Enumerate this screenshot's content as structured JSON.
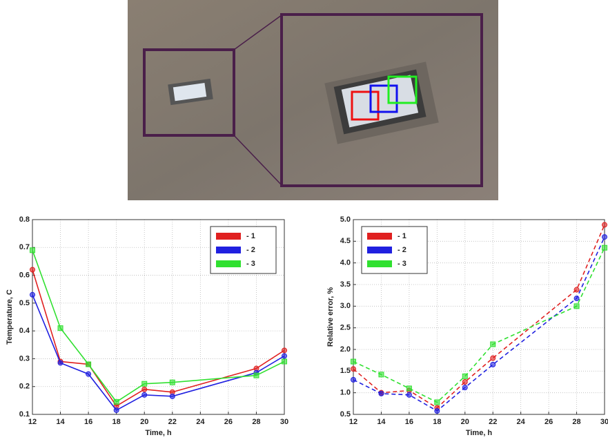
{
  "chart_data": [
    {
      "type": "line",
      "xlabel": "Time, h",
      "ylabel": "Temperature, C",
      "x": [
        12,
        14,
        16,
        18,
        20,
        22,
        28,
        30
      ],
      "xlim": [
        12,
        30
      ],
      "xticks": [
        12,
        14,
        16,
        18,
        20,
        22,
        24,
        26,
        28,
        30
      ],
      "ylim": [
        0.1,
        0.8
      ],
      "yticks": [
        0.1,
        0.2,
        0.3,
        0.4,
        0.5,
        0.6,
        0.7,
        0.8
      ],
      "grid": true,
      "legend": "upper right",
      "linestyle": "solid",
      "series": [
        {
          "name": "- 1",
          "color": "#e02020",
          "marker": "circle",
          "values": [
            0.62,
            0.29,
            0.28,
            0.13,
            0.19,
            0.18,
            0.265,
            0.33
          ]
        },
        {
          "name": "- 2",
          "color": "#2020e0",
          "marker": "circle",
          "values": [
            0.53,
            0.285,
            0.245,
            0.115,
            0.17,
            0.165,
            0.25,
            0.31
          ]
        },
        {
          "name": "- 3",
          "color": "#30e030",
          "marker": "square",
          "values": [
            0.69,
            0.41,
            0.28,
            0.145,
            0.21,
            0.215,
            0.24,
            0.29
          ]
        }
      ]
    },
    {
      "type": "line",
      "xlabel": "Time, h",
      "ylabel": "Relative error, %",
      "x": [
        12,
        14,
        16,
        18,
        20,
        22,
        28,
        30
      ],
      "xlim": [
        12,
        30
      ],
      "xticks": [
        12,
        14,
        16,
        18,
        20,
        22,
        24,
        26,
        28,
        30
      ],
      "ylim": [
        0.5,
        5.0
      ],
      "yticks": [
        0.5,
        {
          "value": 1,
          "label": "1.0"
        },
        1.5,
        {
          "value": 2,
          "label": "2.0"
        },
        2.5,
        {
          "value": 3,
          "label": "3.0"
        },
        3.5,
        {
          "value": 4,
          "label": "4.0"
        },
        4.5,
        {
          "value": 5,
          "label": "5.0"
        }
      ],
      "grid": true,
      "legend": "upper left",
      "linestyle": "dashed",
      "series": [
        {
          "name": "- 1",
          "color": "#e02020",
          "marker": "circle",
          "values": [
            1.55,
            1.0,
            1.05,
            0.65,
            1.25,
            1.8,
            3.38,
            4.88
          ]
        },
        {
          "name": "- 2",
          "color": "#2020e0",
          "marker": "circle",
          "values": [
            1.3,
            0.98,
            0.95,
            0.58,
            1.12,
            1.65,
            3.18,
            4.6
          ]
        },
        {
          "name": "- 3",
          "color": "#30e030",
          "marker": "square",
          "values": [
            1.72,
            1.42,
            1.1,
            0.78,
            1.38,
            2.12,
            3.0,
            4.35
          ]
        }
      ]
    }
  ]
}
